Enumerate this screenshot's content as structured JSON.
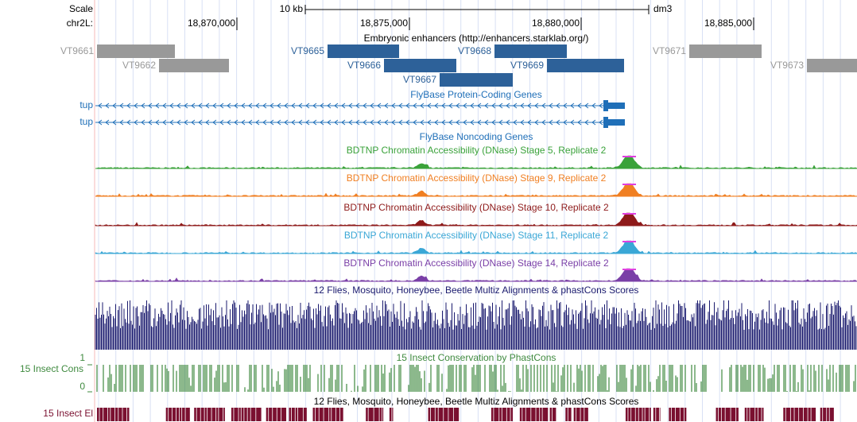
{
  "ruler": {
    "scale_label": "Scale",
    "chrom_label": "chr2L:",
    "scale_bar": "10 kb",
    "assembly": "dm3",
    "ticks": [
      "18,870,000",
      "18,875,000",
      "18,880,000",
      "18,885,000"
    ]
  },
  "enhancers": {
    "title": "Embryonic enhancers (http://enhancers.starklab.org/)",
    "items": [
      {
        "label": "VT9661",
        "color": "#999999"
      },
      {
        "label": "VT9662",
        "color": "#999999"
      },
      {
        "label": "VT9665",
        "color": "#2d6199"
      },
      {
        "label": "VT9666",
        "color": "#2d6199"
      },
      {
        "label": "VT9667",
        "color": "#2d6199"
      },
      {
        "label": "VT9668",
        "color": "#2d6199"
      },
      {
        "label": "VT9669",
        "color": "#2d6199"
      },
      {
        "label": "VT9671",
        "color": "#999999"
      },
      {
        "label": "VT9673",
        "color": "#999999"
      }
    ]
  },
  "protein_genes": {
    "title": "FlyBase Protein-Coding Genes",
    "color": "#1f6fb8",
    "genes": [
      "tup",
      "tup"
    ]
  },
  "noncoding_genes": {
    "title": "FlyBase Noncoding Genes"
  },
  "dnase_tracks": [
    {
      "title": "BDTNP Chromatin Accessibility (DNase) Stage 5, Replicate 2",
      "color": "#3aa23a"
    },
    {
      "title": "BDTNP Chromatin Accessibility (DNase) Stage 9, Replicate 2",
      "color": "#f07f22"
    },
    {
      "title": "BDTNP Chromatin Accessibility (DNase) Stage 10, Replicate 2",
      "color": "#8e1a1a"
    },
    {
      "title": "BDTNP Chromatin Accessibility (DNase) Stage 11, Replicate 2",
      "color": "#3aa7d6"
    },
    {
      "title": "BDTNP Chromatin Accessibility (DNase) Stage 14, Replicate 2",
      "color": "#7a3fa7"
    }
  ],
  "multiz": {
    "title": "12 Flies, Mosquito, Honeybee, Beetle Multiz Alignments & phastCons Scores",
    "color": "#1a1a6e"
  },
  "phastcons": {
    "title": "15 Insect Conservation by PhastCons",
    "label": "15 Insect Cons",
    "max_label": "1",
    "min_label": "0",
    "color": "#3f8a3f"
  },
  "elements": {
    "title": "12 Flies, Mosquito, Honeybee, Beetle Multiz Alignments & phastCons Scores",
    "label": "15 Insect El",
    "color": "#7a1030"
  }
}
